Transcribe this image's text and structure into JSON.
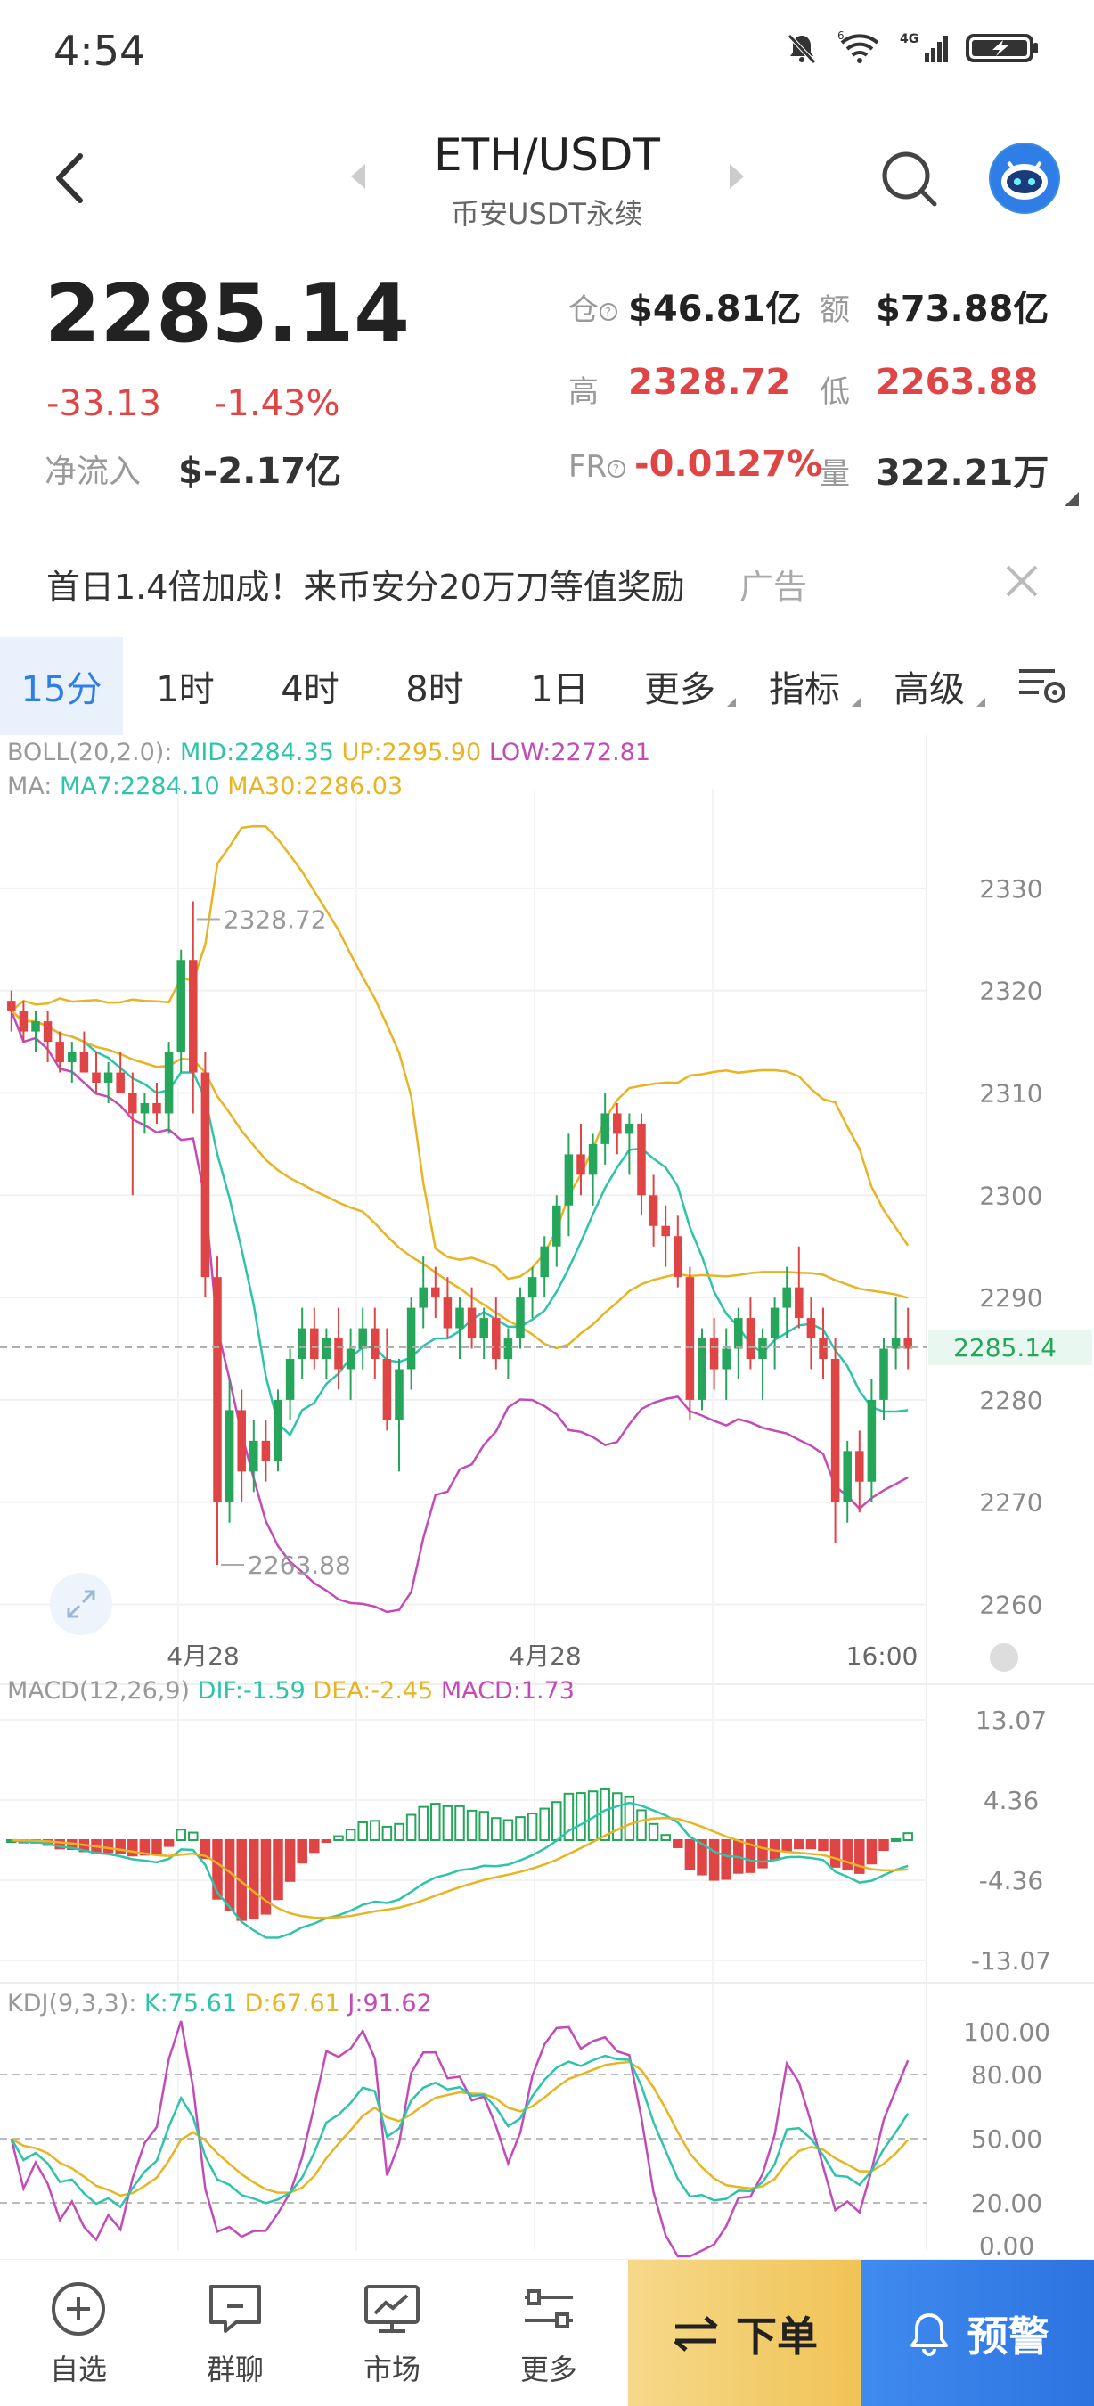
{
  "status": {
    "time": "4:54",
    "signal_label": "4G",
    "wifi_label": "6"
  },
  "header": {
    "pair": "ETH/USDT",
    "market": "币安USDT永续"
  },
  "price": {
    "last": "2285.14",
    "change": "-33.13",
    "change_pct": "-1.43%",
    "netflow_label": "净流入",
    "netflow_value": "$-2.17亿",
    "oi_label": "仓",
    "oi_value": "$46.81亿",
    "turnover_label": "额",
    "turnover_value": "$73.88亿",
    "high_label": "高",
    "high_value": "2328.72",
    "low_label": "低",
    "low_value": "2263.88",
    "fr_label": "FR",
    "fr_value": "-0.0127%",
    "volume_label": "量",
    "volume_value": "322.21万"
  },
  "ad": {
    "text": "首日1.4倍加成！来币安分20万刀等值奖励",
    "tag": "广告"
  },
  "tabs": [
    "15分",
    "1时",
    "4时",
    "8时",
    "1日",
    "更多",
    "指标",
    "高级"
  ],
  "active_tab": "15分",
  "chart_data": {
    "type": "candlestick",
    "boll_legend": {
      "prefix": "BOLL(20,2.0):",
      "mid": "MID:2284.35",
      "up": "UP:2295.90",
      "low": "LOW:2272.81"
    },
    "ma_legend": {
      "prefix": "MA:",
      "ma7": "MA7:2284.10",
      "ma30": "MA30:2286.03"
    },
    "price_axis": [
      "2330",
      "2320",
      "2310",
      "2300",
      "2290",
      "2280",
      "2270",
      "2260"
    ],
    "ylim": [
      2257,
      2338
    ],
    "current_price_label": "2285.14",
    "high_marker": "2328.72",
    "low_marker": "2263.88",
    "x_labels": [
      "4月28",
      "4月28",
      "16:00"
    ],
    "candles": [
      [
        2319,
        2320,
        2316,
        2318
      ],
      [
        2318,
        2319,
        2315,
        2316
      ],
      [
        2316,
        2318,
        2314,
        2317
      ],
      [
        2317,
        2318,
        2313,
        2315
      ],
      [
        2315,
        2316,
        2312,
        2313
      ],
      [
        2313,
        2315,
        2311,
        2314
      ],
      [
        2314,
        2316,
        2312,
        2312
      ],
      [
        2312,
        2314,
        2310,
        2311
      ],
      [
        2311,
        2313,
        2309,
        2312
      ],
      [
        2312,
        2314,
        2310,
        2310
      ],
      [
        2310,
        2312,
        2300,
        2308
      ],
      [
        2308,
        2310,
        2306,
        2309
      ],
      [
        2309,
        2311,
        2307,
        2308
      ],
      [
        2308,
        2315,
        2306,
        2314
      ],
      [
        2314,
        2324,
        2312,
        2323
      ],
      [
        2323,
        2328.72,
        2308,
        2312
      ],
      [
        2312,
        2314,
        2290,
        2292
      ],
      [
        2292,
        2294,
        2263.88,
        2270
      ],
      [
        2270,
        2282,
        2268,
        2279
      ],
      [
        2279,
        2281,
        2270,
        2273
      ],
      [
        2273,
        2278,
        2271,
        2276
      ],
      [
        2276,
        2278,
        2272,
        2274
      ],
      [
        2274,
        2281,
        2273,
        2280
      ],
      [
        2280,
        2285,
        2278,
        2284
      ],
      [
        2284,
        2289,
        2282,
        2287
      ],
      [
        2287,
        2289,
        2283,
        2284
      ],
      [
        2284,
        2287,
        2282,
        2286
      ],
      [
        2286,
        2289,
        2281,
        2283
      ],
      [
        2283,
        2287,
        2280,
        2285
      ],
      [
        2285,
        2289,
        2283,
        2287
      ],
      [
        2287,
        2289,
        2282,
        2284
      ],
      [
        2284,
        2287,
        2277,
        2278
      ],
      [
        2278,
        2284,
        2273,
        2283
      ],
      [
        2283,
        2290,
        2281,
        2289
      ],
      [
        2289,
        2294,
        2287,
        2291
      ],
      [
        2291,
        2293,
        2288,
        2290
      ],
      [
        2290,
        2292,
        2286,
        2287
      ],
      [
        2287,
        2290,
        2284,
        2289
      ],
      [
        2289,
        2291,
        2285,
        2286
      ],
      [
        2286,
        2289,
        2284,
        2288
      ],
      [
        2288,
        2290,
        2283,
        2284
      ],
      [
        2284,
        2287,
        2282,
        2286
      ],
      [
        2286,
        2291,
        2285,
        2290
      ],
      [
        2290,
        2293,
        2288,
        2292
      ],
      [
        2292,
        2296,
        2290,
        2295
      ],
      [
        2295,
        2300,
        2293,
        2299
      ],
      [
        2299,
        2306,
        2296,
        2304
      ],
      [
        2304,
        2307,
        2300,
        2302
      ],
      [
        2302,
        2306,
        2299,
        2305
      ],
      [
        2305,
        2310,
        2303,
        2308
      ],
      [
        2308,
        2309,
        2304,
        2306
      ],
      [
        2306,
        2308,
        2302,
        2307
      ],
      [
        2307,
        2308,
        2298,
        2300
      ],
      [
        2300,
        2302,
        2295,
        2297
      ],
      [
        2297,
        2299,
        2293,
        2296
      ],
      [
        2296,
        2298,
        2291,
        2292
      ],
      [
        2292,
        2293,
        2278,
        2280
      ],
      [
        2280,
        2287,
        2279,
        2286
      ],
      [
        2286,
        2288,
        2281,
        2283
      ],
      [
        2283,
        2287,
        2280,
        2285
      ],
      [
        2285,
        2289,
        2282,
        2288
      ],
      [
        2288,
        2290,
        2283,
        2284
      ],
      [
        2284,
        2287,
        2280,
        2286
      ],
      [
        2286,
        2290,
        2283,
        2289
      ],
      [
        2289,
        2293,
        2286,
        2291
      ],
      [
        2291,
        2295,
        2287,
        2288
      ],
      [
        2288,
        2290,
        2283,
        2286
      ],
      [
        2286,
        2289,
        2282,
        2284
      ],
      [
        2284,
        2286,
        2266,
        2270
      ],
      [
        2270,
        2276,
        2268,
        2275
      ],
      [
        2275,
        2277,
        2269,
        2272
      ],
      [
        2272,
        2282,
        2270,
        2280
      ],
      [
        2280,
        2286,
        2278,
        2285
      ],
      [
        2285,
        2290,
        2283,
        2286
      ],
      [
        2286,
        2289,
        2283,
        2285
      ]
    ],
    "macd_legend": {
      "prefix": "MACD(12,26,9)",
      "dif": "DIF:-1.59",
      "dea": "DEA:-2.45",
      "macd": "MACD:1.73"
    },
    "macd_axis": [
      "13.07",
      "4.36",
      "-4.36",
      "-13.07"
    ],
    "macd_ylim": [
      -13.07,
      13.07
    ],
    "kdj_legend": {
      "prefix": "KDJ(9,3,3):",
      "k": "K:75.61",
      "d": "D:67.61",
      "j": "J:91.62"
    },
    "kdj_axis": [
      "100.00",
      "80.00",
      "50.00",
      "20.00",
      "0.00"
    ],
    "kdj_ylim": [
      0,
      100
    ]
  },
  "nav": [
    {
      "label": "自选",
      "icon": "add-circle-icon"
    },
    {
      "label": "群聊",
      "icon": "chat-icon"
    },
    {
      "label": "市场",
      "icon": "market-monitor-icon"
    },
    {
      "label": "更多",
      "icon": "more-sliders-icon"
    }
  ],
  "actions": {
    "order": "下单",
    "alert": "预警"
  },
  "colors": {
    "up": "#26a65b",
    "down": "#e04545",
    "accent": "#2f7ee8",
    "boll": "#e8b423",
    "boll_low": "#c24bb8",
    "ma7": "#2ec4a9",
    "ma30": "#e8b423"
  }
}
